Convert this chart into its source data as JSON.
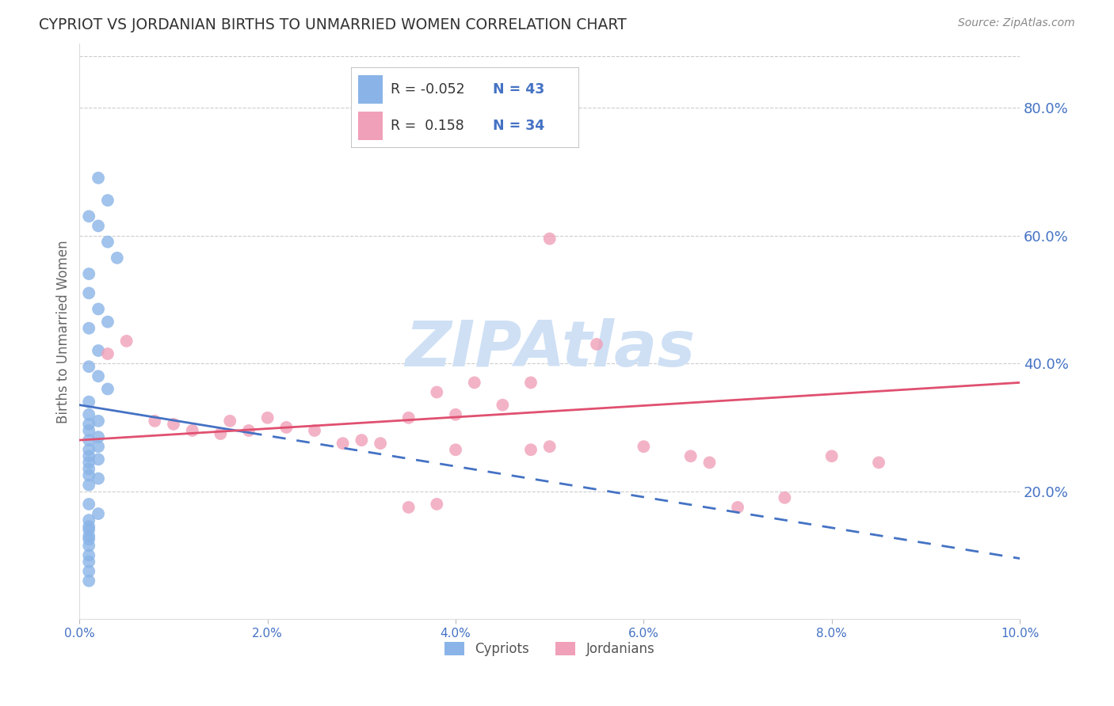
{
  "title": "CYPRIOT VS JORDANIAN BIRTHS TO UNMARRIED WOMEN CORRELATION CHART",
  "source": "Source: ZipAtlas.com",
  "ylabel": "Births to Unmarried Women",
  "right_ytick_labels": [
    "20.0%",
    "40.0%",
    "60.0%",
    "80.0%"
  ],
  "right_ytick_values": [
    0.2,
    0.4,
    0.6,
    0.8
  ],
  "xlim": [
    0.0,
    0.1
  ],
  "ylim": [
    0.0,
    0.9
  ],
  "xtick_labels": [
    "0.0%",
    "2.0%",
    "4.0%",
    "6.0%",
    "8.0%",
    "10.0%"
  ],
  "xtick_values": [
    0.0,
    0.02,
    0.04,
    0.06,
    0.08,
    0.1
  ],
  "cypriot_color": "#8ab4e8",
  "jordanian_color": "#f0a0b8",
  "trend_cypriot_color": "#4472c4",
  "trend_jordanian_color": "#e05070",
  "watermark": "ZIPAtlas",
  "watermark_color": "#cfe0f5",
  "R_cypriot": -0.052,
  "N_cypriot": 43,
  "R_jordanian": 0.158,
  "N_jordanian": 34,
  "cyp_trend_solid_start": 0.0,
  "cyp_trend_solid_end": 0.018,
  "cyp_trend_y_at_0": 0.335,
  "cyp_trend_y_at_10pct": 0.095,
  "jor_trend_y_at_0": 0.28,
  "jor_trend_y_at_10pct": 0.37,
  "cypriot_x": [
    0.002,
    0.003,
    0.001,
    0.002,
    0.003,
    0.004,
    0.001,
    0.001,
    0.002,
    0.003,
    0.001,
    0.002,
    0.001,
    0.002,
    0.003,
    0.001,
    0.001,
    0.002,
    0.001,
    0.001,
    0.002,
    0.001,
    0.002,
    0.001,
    0.001,
    0.002,
    0.001,
    0.001,
    0.001,
    0.002,
    0.001,
    0.001,
    0.002,
    0.001,
    0.001,
    0.001,
    0.001,
    0.001,
    0.001,
    0.001,
    0.001,
    0.001,
    0.001
  ],
  "cypriot_y": [
    0.69,
    0.655,
    0.63,
    0.615,
    0.59,
    0.565,
    0.54,
    0.51,
    0.485,
    0.465,
    0.455,
    0.42,
    0.395,
    0.38,
    0.36,
    0.34,
    0.32,
    0.31,
    0.305,
    0.295,
    0.285,
    0.28,
    0.27,
    0.265,
    0.255,
    0.25,
    0.245,
    0.235,
    0.225,
    0.22,
    0.21,
    0.18,
    0.165,
    0.155,
    0.145,
    0.14,
    0.13,
    0.125,
    0.115,
    0.1,
    0.09,
    0.075,
    0.06
  ],
  "jordanian_x": [
    0.003,
    0.005,
    0.008,
    0.01,
    0.012,
    0.015,
    0.016,
    0.018,
    0.02,
    0.022,
    0.025,
    0.028,
    0.03,
    0.032,
    0.035,
    0.038,
    0.04,
    0.042,
    0.045,
    0.048,
    0.05,
    0.035,
    0.038,
    0.04,
    0.048,
    0.05,
    0.055,
    0.06,
    0.065,
    0.067,
    0.07,
    0.075,
    0.08,
    0.085
  ],
  "jordanian_y": [
    0.415,
    0.435,
    0.31,
    0.305,
    0.295,
    0.29,
    0.31,
    0.295,
    0.315,
    0.3,
    0.295,
    0.275,
    0.28,
    0.275,
    0.315,
    0.355,
    0.32,
    0.37,
    0.335,
    0.37,
    0.595,
    0.175,
    0.18,
    0.265,
    0.265,
    0.27,
    0.43,
    0.27,
    0.255,
    0.245,
    0.175,
    0.19,
    0.255,
    0.245
  ],
  "background_color": "#ffffff",
  "grid_color": "#cccccc",
  "axis_color": "#4472c4"
}
